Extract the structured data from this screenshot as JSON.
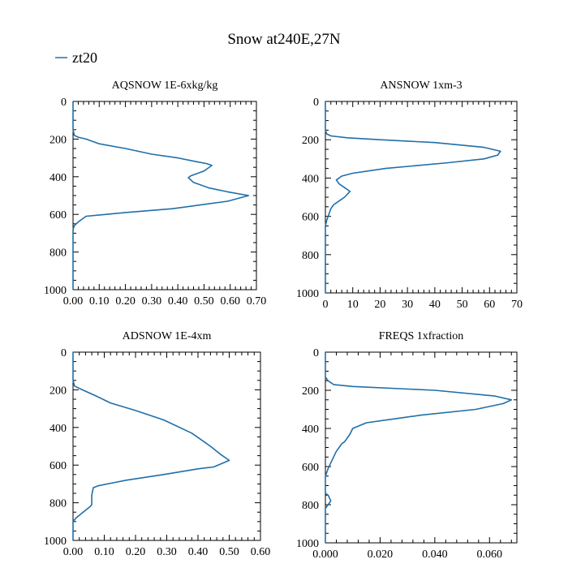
{
  "figure": {
    "title": "Snow at240E,27N",
    "legend": {
      "label": "zt20",
      "color": "#1f6fa8"
    }
  },
  "chart_data": [
    {
      "type": "line",
      "title": "AQSNOW  1E-6xkg/kg",
      "xlim": [
        0,
        0.7
      ],
      "ylim": [
        1000,
        0
      ],
      "xticks": [
        "0.00",
        "0.10",
        "0.20",
        "0.30",
        "0.40",
        "0.50",
        "0.60",
        "0.70"
      ],
      "yticks": [
        "0",
        "200",
        "400",
        "600",
        "800",
        "1000"
      ],
      "series": [
        {
          "name": "zt20",
          "x": [
            0,
            0,
            0.005,
            0.02,
            0.05,
            0.1,
            0.2,
            0.3,
            0.4,
            0.47,
            0.51,
            0.53,
            0.5,
            0.45,
            0.44,
            0.46,
            0.52,
            0.59,
            0.67,
            0.59,
            0.38,
            0.2,
            0.05,
            0.02,
            0.005,
            0,
            0
          ],
          "y": [
            0,
            150,
            180,
            190,
            200,
            225,
            250,
            280,
            300,
            320,
            330,
            340,
            370,
            395,
            405,
            430,
            460,
            480,
            500,
            530,
            570,
            590,
            610,
            640,
            660,
            680,
            1000
          ]
        }
      ]
    },
    {
      "type": "line",
      "title": "ANSNOW  1xm-3",
      "xlim": [
        0,
        70
      ],
      "ylim": [
        1000,
        0
      ],
      "xticks": [
        "0",
        "10",
        "20",
        "30",
        "40",
        "50",
        "60",
        "70"
      ],
      "yticks": [
        "0",
        "200",
        "400",
        "600",
        "800",
        "1000"
      ],
      "series": [
        {
          "name": "zt20",
          "x": [
            0,
            0,
            0.5,
            2,
            8,
            20,
            40,
            58,
            64,
            63,
            58,
            45,
            22,
            10,
            6,
            4,
            5,
            7,
            9,
            7,
            5,
            3,
            2,
            1.5,
            1,
            0.5,
            0,
            0
          ],
          "y": [
            0,
            150,
            170,
            180,
            190,
            200,
            215,
            240,
            260,
            280,
            300,
            320,
            350,
            375,
            390,
            410,
            430,
            450,
            470,
            500,
            520,
            540,
            560,
            580,
            600,
            620,
            650,
            1000
          ]
        }
      ]
    },
    {
      "type": "line",
      "title": "ADSNOW  1E-4xm",
      "xlim": [
        0,
        0.6
      ],
      "ylim": [
        1000,
        0
      ],
      "xticks": [
        "0.00",
        "0.10",
        "0.20",
        "0.30",
        "0.40",
        "0.50",
        "0.60"
      ],
      "yticks": [
        "0",
        "200",
        "400",
        "600",
        "800",
        "1000"
      ],
      "series": [
        {
          "name": "zt20",
          "x": [
            0,
            0,
            0.005,
            0.03,
            0.07,
            0.12,
            0.2,
            0.29,
            0.38,
            0.44,
            0.47,
            0.5,
            0.45,
            0.4,
            0.29,
            0.17,
            0.14,
            0.08,
            0.065,
            0.06,
            0.06,
            0.055,
            0.04,
            0.025,
            0.01,
            0,
            0
          ],
          "y": [
            0,
            150,
            180,
            200,
            230,
            270,
            310,
            360,
            430,
            500,
            540,
            575,
            610,
            620,
            650,
            680,
            690,
            710,
            720,
            760,
            810,
            820,
            840,
            860,
            880,
            900,
            1000
          ]
        }
      ]
    },
    {
      "type": "line",
      "title": "FREQS  1xfraction",
      "xlim": [
        0,
        0.07
      ],
      "ylim": [
        1000,
        0
      ],
      "xticks": [
        "0.000",
        "0.020",
        "0.040",
        "0.060"
      ],
      "yticks": [
        "0",
        "200",
        "400",
        "600",
        "800",
        "1000"
      ],
      "series": [
        {
          "name": "zt20",
          "x": [
            0,
            0,
            0.001,
            0.003,
            0.01,
            0.04,
            0.062,
            0.068,
            0.065,
            0.055,
            0.035,
            0.025,
            0.015,
            0.01,
            0.009,
            0.008,
            0.007,
            0.006,
            0.005,
            0.004,
            0.003,
            0.002,
            0.001,
            0,
            0,
            0.001,
            0.002,
            0.001,
            0,
            0
          ],
          "y": [
            0,
            130,
            150,
            170,
            180,
            200,
            230,
            250,
            270,
            300,
            330,
            350,
            370,
            400,
            430,
            450,
            470,
            480,
            500,
            520,
            550,
            580,
            610,
            650,
            740,
            750,
            780,
            800,
            820,
            1000
          ]
        }
      ]
    }
  ]
}
